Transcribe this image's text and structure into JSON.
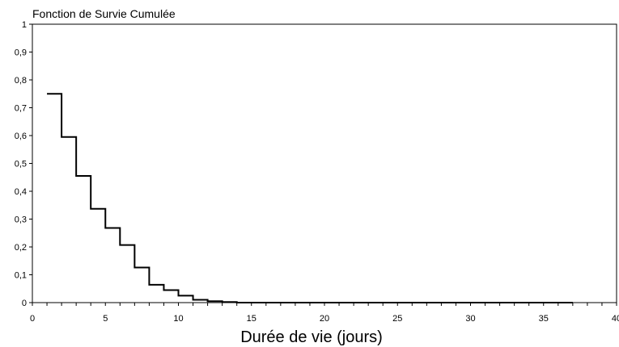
{
  "chart_data": {
    "type": "line",
    "subtype": "step",
    "title": "Fonction de Survie Cumulée",
    "xlabel": "Durée de vie (jours)",
    "ylabel": "",
    "xlim": [
      0,
      40
    ],
    "ylim": [
      0,
      1
    ],
    "x_ticks": [
      0,
      5,
      10,
      15,
      20,
      25,
      30,
      35,
      40
    ],
    "x_tick_labels": [
      "0",
      "5",
      "10",
      "15",
      "20",
      "25",
      "30",
      "35",
      "40"
    ],
    "y_ticks": [
      0,
      0.1,
      0.2,
      0.3,
      0.4,
      0.5,
      0.6,
      0.7,
      0.8,
      0.9,
      1
    ],
    "y_tick_labels": [
      "0",
      "0,1",
      "0,2",
      "0,3",
      "0,4",
      "0,5",
      "0,6",
      "0,7",
      "0,8",
      "0,9",
      "1"
    ],
    "grid": false,
    "legend": "none",
    "line_color": "#000000",
    "series": [
      {
        "x": [
          1,
          2,
          3,
          4,
          5,
          6,
          7,
          8,
          9,
          10,
          11,
          12,
          13,
          14,
          37
        ],
        "y": [
          0.75,
          0.595,
          0.455,
          0.337,
          0.268,
          0.207,
          0.126,
          0.064,
          0.045,
          0.025,
          0.01,
          0.005,
          0.002,
          0,
          0
        ]
      }
    ]
  }
}
